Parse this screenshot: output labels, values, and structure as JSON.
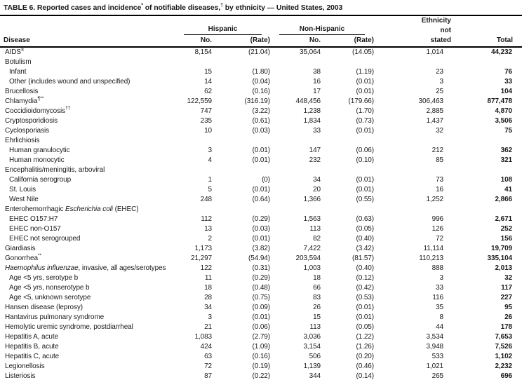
{
  "title": {
    "segments": [
      {
        "t": "TABLE 6. Reported cases and incidence"
      },
      {
        "t": "*",
        "sup": true
      },
      {
        "t": " of notifiable diseases,"
      },
      {
        "t": "†",
        "sup": true
      },
      {
        "t": " by ethnicity — United States, 2003"
      }
    ]
  },
  "header": {
    "disease": "Disease",
    "groups": {
      "hispanic": "Hispanic",
      "non_hispanic": "Non-Hispanic"
    },
    "ethnicity_not_stated": [
      "Ethnicity",
      "not",
      "stated"
    ],
    "no_label": "No.",
    "rate_label": "(Rate)",
    "total_label": "Total"
  },
  "columns": [
    "Disease",
    "Hispanic No.",
    "Hispanic (Rate)",
    "Non-Hispanic No.",
    "Non-Hispanic (Rate)",
    "Ethnicity not stated",
    "Total"
  ],
  "rows": [
    {
      "label": "AIDS",
      "sup": "§",
      "indent": 0,
      "cells": [
        "8,154",
        "(21.04)",
        "35,064",
        "(14.05)",
        "1,014",
        "44,232"
      ]
    },
    {
      "label": "Botulism",
      "indent": 0,
      "cells": [
        "",
        "",
        "",
        "",
        "",
        ""
      ]
    },
    {
      "label": "Infant",
      "indent": 1,
      "cells": [
        "15",
        "(1.80)",
        "38",
        "(1.19)",
        "23",
        "76"
      ]
    },
    {
      "label": "Other (includes wound and unspecified)",
      "indent": 1,
      "cells": [
        "14",
        "(0.04)",
        "16",
        "(0.01)",
        "3",
        "33"
      ]
    },
    {
      "label": "Brucellosis",
      "indent": 0,
      "cells": [
        "62",
        "(0.16)",
        "17",
        "(0.01)",
        "25",
        "104"
      ]
    },
    {
      "label": "Chlamydia",
      "sup": "¶**",
      "indent": 0,
      "cells": [
        "122,559",
        "(316.19)",
        "448,456",
        "(179.66)",
        "306,463",
        "877,478"
      ]
    },
    {
      "label": "Coccidioidomycosis",
      "sup": "††",
      "indent": 0,
      "cells": [
        "747",
        "(3.22)",
        "1,238",
        "(1.70)",
        "2,885",
        "4,870"
      ]
    },
    {
      "label": "Cryptosporidiosis",
      "indent": 0,
      "cells": [
        "235",
        "(0.61)",
        "1,834",
        "(0.73)",
        "1,437",
        "3,506"
      ]
    },
    {
      "label": "Cyclosporiasis",
      "indent": 0,
      "cells": [
        "10",
        "(0.03)",
        "33",
        "(0.01)",
        "32",
        "75"
      ]
    },
    {
      "label": "Ehrlichiosis",
      "indent": 0,
      "cells": [
        "",
        "",
        "",
        "",
        "",
        ""
      ]
    },
    {
      "label": "Human granulocytic",
      "indent": 1,
      "cells": [
        "3",
        "(0.01)",
        "147",
        "(0.06)",
        "212",
        "362"
      ]
    },
    {
      "label": "Human monocytic",
      "indent": 1,
      "cells": [
        "4",
        "(0.01)",
        "232",
        "(0.10)",
        "85",
        "321"
      ]
    },
    {
      "label": "Encephalitis/meningitis, arboviral",
      "indent": 0,
      "cells": [
        "",
        "",
        "",
        "",
        "",
        ""
      ]
    },
    {
      "label": "California serogroup",
      "indent": 1,
      "cells": [
        "1",
        "(0)",
        "34",
        "(0.01)",
        "73",
        "108"
      ]
    },
    {
      "label": "St. Louis",
      "indent": 1,
      "cells": [
        "5",
        "(0.01)",
        "20",
        "(0.01)",
        "16",
        "41"
      ]
    },
    {
      "label": "West Nile",
      "indent": 1,
      "cells": [
        "248",
        "(0.64)",
        "1,366",
        "(0.55)",
        "1,252",
        "2,866"
      ]
    },
    {
      "pre": "Enterohemorrhagic ",
      "italic": "Escherichia coli",
      "post": " (EHEC)",
      "indent": 0,
      "cells": [
        "",
        "",
        "",
        "",
        "",
        ""
      ]
    },
    {
      "label": "EHEC O157:H7",
      "indent": 1,
      "cells": [
        "112",
        "(0.29)",
        "1,563",
        "(0.63)",
        "996",
        "2,671"
      ]
    },
    {
      "label": "EHEC non-O157",
      "indent": 1,
      "cells": [
        "13",
        "(0.03)",
        "113",
        "(0.05)",
        "126",
        "252"
      ]
    },
    {
      "label": "EHEC not serogrouped",
      "indent": 1,
      "cells": [
        "2",
        "(0.01)",
        "82",
        "(0.40)",
        "72",
        "156"
      ]
    },
    {
      "label": "Giardiasis",
      "indent": 0,
      "cells": [
        "1,173",
        "(3.82)",
        "7,422",
        "(3.42)",
        "11,114",
        "19,709"
      ]
    },
    {
      "label": "Gonorrhea",
      "sup": "**",
      "indent": 0,
      "cells": [
        "21,297",
        "(54.94)",
        "203,594",
        "(81.57)",
        "110,213",
        "335,104"
      ]
    },
    {
      "italic": "Haemophilus influenzae",
      "post": ", invasive, all ages/serotypes",
      "indent": 0,
      "cells": [
        "122",
        "(0.31)",
        "1,003",
        "(0.40)",
        "888",
        "2,013"
      ]
    },
    {
      "label": "Age <5 yrs, serotype b",
      "indent": 1,
      "cells": [
        "11",
        "(0.29)",
        "18",
        "(0.12)",
        "3",
        "32"
      ]
    },
    {
      "label": "Age <5 yrs, nonserotype b",
      "indent": 1,
      "cells": [
        "18",
        "(0.48)",
        "66",
        "(0.42)",
        "33",
        "117"
      ]
    },
    {
      "label": "Age <5, unknown serotype",
      "indent": 1,
      "cells": [
        "28",
        "(0.75)",
        "83",
        "(0.53)",
        "116",
        "227"
      ]
    },
    {
      "label": "Hansen disease (leprosy)",
      "indent": 0,
      "cells": [
        "34",
        "(0.09)",
        "26",
        "(0.01)",
        "35",
        "95"
      ]
    },
    {
      "label": "Hantavirus pulmonary syndrome",
      "indent": 0,
      "cells": [
        "3",
        "(0.01)",
        "15",
        "(0.01)",
        "8",
        "26"
      ]
    },
    {
      "label": "Hemolytic uremic syndrome, postdiarrheal",
      "indent": 0,
      "cells": [
        "21",
        "(0.06)",
        "113",
        "(0.05)",
        "44",
        "178"
      ]
    },
    {
      "label": "Hepatitis A, acute",
      "indent": 0,
      "cells": [
        "1,083",
        "(2.79)",
        "3,036",
        "(1.22)",
        "3,534",
        "7,653"
      ]
    },
    {
      "label": "Hepatitis B, acute",
      "indent": 0,
      "cells": [
        "424",
        "(1.09)",
        "3,154",
        "(1.26)",
        "3,948",
        "7,526"
      ]
    },
    {
      "label": "Hepatitis C, acute",
      "indent": 0,
      "cells": [
        "63",
        "(0.16)",
        "506",
        "(0.20)",
        "533",
        "1,102"
      ]
    },
    {
      "label": "Legionellosis",
      "indent": 0,
      "cells": [
        "72",
        "(0.19)",
        "1,139",
        "(0.46)",
        "1,021",
        "2,232"
      ]
    },
    {
      "label": "Listeriosis",
      "indent": 0,
      "cells": [
        "87",
        "(0.22)",
        "344",
        "(0.14)",
        "265",
        "696"
      ]
    }
  ],
  "colors": {
    "text": "#1a1a1a",
    "rule": "#000000",
    "background": "#ffffff"
  }
}
